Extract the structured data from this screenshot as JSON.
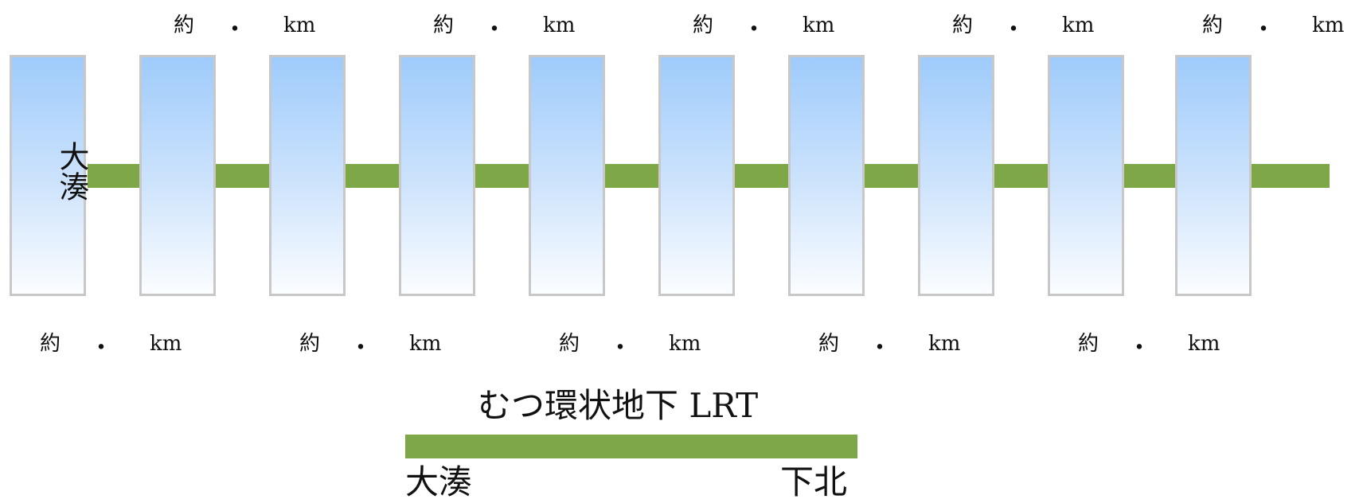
{
  "line": {
    "color": "#7ea848",
    "stations": [
      {
        "name": "大湊"
      },
      {
        "name": ""
      },
      {
        "name": ""
      },
      {
        "name": ""
      },
      {
        "name": ""
      },
      {
        "name": ""
      },
      {
        "name": ""
      },
      {
        "name": ""
      },
      {
        "name": ""
      },
      {
        "name": ""
      }
    ],
    "distances_top": [
      {
        "prefix": "約",
        "dot": "・",
        "unit": "km"
      },
      {
        "prefix": "約",
        "dot": "・",
        "unit": "km"
      },
      {
        "prefix": "約",
        "dot": "・",
        "unit": "km"
      },
      {
        "prefix": "約",
        "dot": "・",
        "unit": "km"
      },
      {
        "prefix": "約",
        "dot": "・",
        "unit": "km"
      }
    ],
    "distances_bottom": [
      {
        "prefix": "約",
        "dot": "・",
        "unit": "km"
      },
      {
        "prefix": "約",
        "dot": "・",
        "unit": "km"
      },
      {
        "prefix": "約",
        "dot": "・",
        "unit": "km"
      },
      {
        "prefix": "約",
        "dot": "・",
        "unit": "km"
      },
      {
        "prefix": "約",
        "dot": "・",
        "unit": "km"
      }
    ]
  },
  "legend": {
    "title": "むつ環状地下 LRT",
    "from": "大湊",
    "to": "下北"
  }
}
